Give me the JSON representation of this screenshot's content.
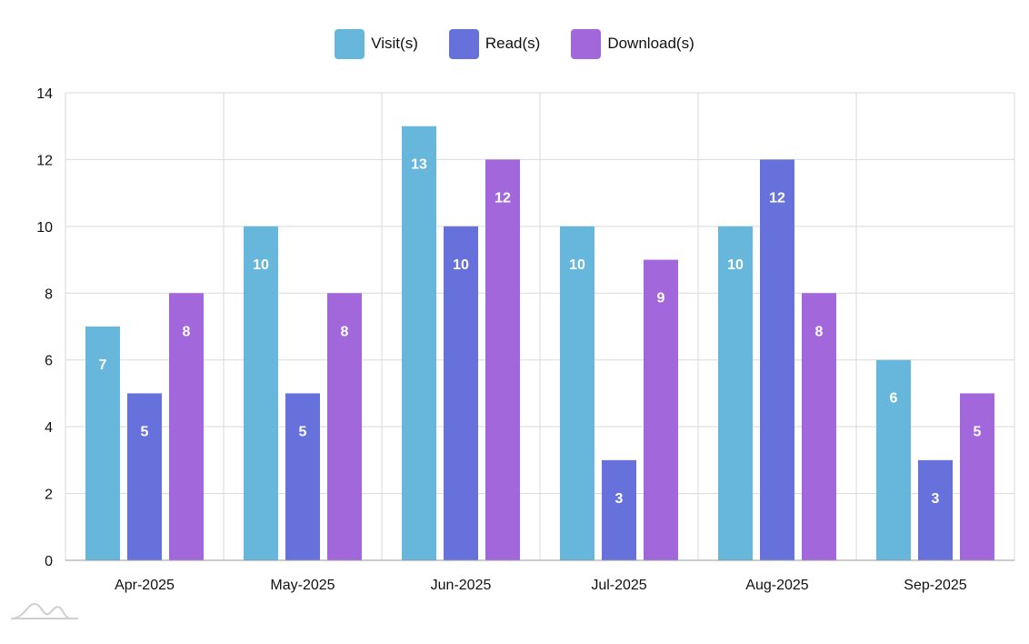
{
  "chart_data": {
    "type": "bar",
    "title": "",
    "xlabel": "",
    "ylabel": "",
    "categories": [
      "Apr-2025",
      "May-2025",
      "Jun-2025",
      "Jul-2025",
      "Aug-2025",
      "Sep-2025"
    ],
    "ylim": [
      0,
      14
    ],
    "yticks": [
      0,
      2,
      4,
      6,
      8,
      10,
      12,
      14
    ],
    "grid": true,
    "legend_position": "top-center",
    "series": [
      {
        "name": "Visit(s)",
        "color": "#67B7DC",
        "values": [
          7,
          10,
          13,
          10,
          10,
          6
        ]
      },
      {
        "name": "Read(s)",
        "color": "#6771DC",
        "values": [
          5,
          5,
          10,
          3,
          12,
          3
        ]
      },
      {
        "name": "Download(s)",
        "color": "#A367DC",
        "values": [
          8,
          8,
          12,
          9,
          8,
          5
        ]
      }
    ]
  }
}
